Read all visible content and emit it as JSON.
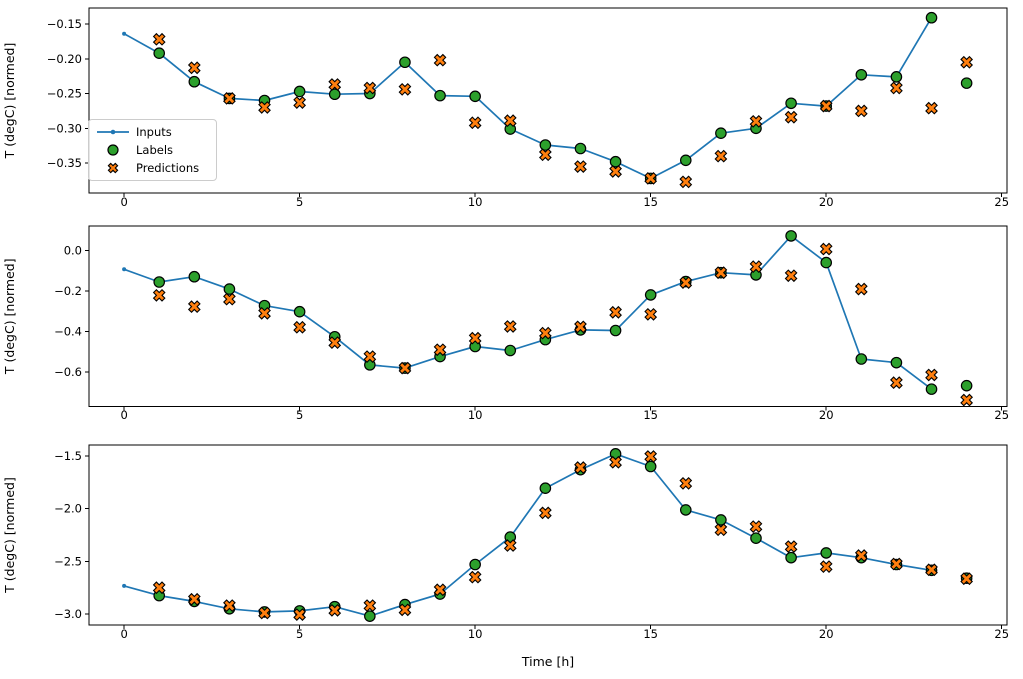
{
  "xlabel": "Time [h]",
  "colors": {
    "inputs": "#1f77b4",
    "labels": "#2ca02c",
    "predictions": "#ff7f0e",
    "marker_edge": "#000000",
    "axis": "#000000",
    "background": "#ffffff",
    "legend_border": "#cccccc"
  },
  "legend": {
    "items": [
      {
        "label": "Inputs"
      },
      {
        "label": "Labels"
      },
      {
        "label": "Predictions"
      }
    ]
  },
  "chart_data": [
    {
      "type": "line",
      "position": "top",
      "ylabel": "T (degC) [normed]",
      "grid": false,
      "legend_position": "center left",
      "xlim": [
        -1.0,
        25.15
      ],
      "ylim": [
        -0.393,
        -0.127
      ],
      "xticks": {
        "values": [
          0,
          5,
          10,
          15,
          20,
          25
        ],
        "labels": [
          "0",
          "5",
          "10",
          "15",
          "20",
          "25"
        ]
      },
      "yticks": {
        "values": [
          -0.15,
          -0.2,
          -0.25,
          -0.3,
          -0.35
        ],
        "labels": [
          "−0.15",
          "−0.20",
          "−0.25",
          "−0.30",
          "−0.35"
        ]
      },
      "series": [
        {
          "name": "Inputs",
          "style": "line-with-dots",
          "x": [
            0,
            1,
            2,
            3,
            4,
            5,
            6,
            7,
            8,
            9,
            10,
            11,
            12,
            13,
            14,
            15,
            16,
            17,
            18,
            19,
            20,
            21,
            22,
            23
          ],
          "y": [
            -0.164,
            -0.192,
            -0.233,
            -0.257,
            -0.26,
            -0.247,
            -0.251,
            -0.25,
            -0.205,
            -0.253,
            -0.254,
            -0.301,
            -0.324,
            -0.329,
            -0.348,
            -0.372,
            -0.346,
            -0.307,
            -0.3,
            -0.264,
            -0.268,
            -0.223,
            -0.226,
            -0.141
          ]
        },
        {
          "name": "Labels",
          "style": "filled-circle",
          "x": [
            1,
            2,
            3,
            4,
            5,
            6,
            7,
            8,
            9,
            10,
            11,
            12,
            13,
            14,
            15,
            16,
            17,
            18,
            19,
            20,
            21,
            22,
            23,
            24
          ],
          "y": [
            -0.192,
            -0.233,
            -0.257,
            -0.26,
            -0.247,
            -0.251,
            -0.25,
            -0.205,
            -0.253,
            -0.254,
            -0.301,
            -0.324,
            -0.329,
            -0.348,
            -0.372,
            -0.346,
            -0.307,
            -0.3,
            -0.264,
            -0.268,
            -0.223,
            -0.226,
            -0.141,
            -0.235
          ]
        },
        {
          "name": "Predictions",
          "style": "filled-x",
          "x": [
            1,
            2,
            3,
            4,
            5,
            6,
            7,
            8,
            9,
            10,
            11,
            12,
            13,
            14,
            15,
            16,
            17,
            18,
            19,
            20,
            21,
            22,
            23,
            24
          ],
          "y": [
            -0.172,
            -0.213,
            -0.257,
            -0.27,
            -0.263,
            -0.237,
            -0.242,
            -0.244,
            -0.202,
            -0.292,
            -0.289,
            -0.338,
            -0.355,
            -0.362,
            -0.372,
            -0.377,
            -0.34,
            -0.29,
            -0.284,
            -0.268,
            -0.275,
            -0.242,
            -0.271,
            -0.205
          ]
        }
      ]
    },
    {
      "type": "line",
      "position": "middle",
      "ylabel": "T (degC) [normed]",
      "grid": false,
      "xlim": [
        -1.0,
        25.15
      ],
      "ylim": [
        -0.771,
        0.122
      ],
      "xticks": {
        "values": [
          0,
          5,
          10,
          15,
          20,
          25
        ],
        "labels": [
          "0",
          "5",
          "10",
          "15",
          "20",
          "25"
        ]
      },
      "yticks": {
        "values": [
          0.0,
          -0.2,
          -0.4,
          -0.6
        ],
        "labels": [
          "0.0",
          "−0.2",
          "−0.4",
          "−0.6"
        ]
      },
      "series": [
        {
          "name": "Inputs",
          "style": "line-with-dots",
          "x": [
            0,
            1,
            2,
            3,
            4,
            5,
            6,
            7,
            8,
            9,
            10,
            11,
            12,
            13,
            14,
            15,
            16,
            17,
            18,
            19,
            20,
            21,
            22,
            23
          ],
          "y": [
            -0.092,
            -0.155,
            -0.129,
            -0.19,
            -0.272,
            -0.302,
            -0.426,
            -0.565,
            -0.581,
            -0.524,
            -0.474,
            -0.494,
            -0.44,
            -0.392,
            -0.395,
            -0.219,
            -0.153,
            -0.109,
            -0.12,
            0.073,
            -0.059,
            -0.536,
            -0.554,
            -0.685
          ]
        },
        {
          "name": "Labels",
          "style": "filled-circle",
          "x": [
            1,
            2,
            3,
            4,
            5,
            6,
            7,
            8,
            9,
            10,
            11,
            12,
            13,
            14,
            15,
            16,
            17,
            18,
            19,
            20,
            21,
            22,
            23,
            24
          ],
          "y": [
            -0.155,
            -0.129,
            -0.19,
            -0.272,
            -0.302,
            -0.426,
            -0.565,
            -0.581,
            -0.524,
            -0.474,
            -0.494,
            -0.44,
            -0.392,
            -0.395,
            -0.219,
            -0.153,
            -0.109,
            -0.12,
            0.073,
            -0.059,
            -0.536,
            -0.554,
            -0.685,
            -0.668
          ]
        },
        {
          "name": "Predictions",
          "style": "filled-x",
          "x": [
            1,
            2,
            3,
            4,
            5,
            6,
            7,
            8,
            9,
            10,
            11,
            12,
            13,
            14,
            15,
            16,
            17,
            18,
            19,
            20,
            21,
            22,
            23,
            24
          ],
          "y": [
            -0.221,
            -0.277,
            -0.24,
            -0.31,
            -0.379,
            -0.455,
            -0.524,
            -0.581,
            -0.49,
            -0.433,
            -0.375,
            -0.408,
            -0.377,
            -0.305,
            -0.315,
            -0.158,
            -0.109,
            -0.079,
            -0.124,
            0.008,
            -0.19,
            -0.653,
            -0.615,
            -0.739
          ]
        }
      ]
    },
    {
      "type": "line",
      "position": "bottom",
      "ylabel": "T (degC) [normed]",
      "grid": false,
      "xlim": [
        -1.0,
        25.15
      ],
      "ylim": [
        -3.104,
        -1.396
      ],
      "xticks": {
        "values": [
          0,
          5,
          10,
          15,
          20,
          25
        ],
        "labels": [
          "0",
          "5",
          "10",
          "15",
          "20",
          "25"
        ]
      },
      "yticks": {
        "values": [
          -1.5,
          -2.0,
          -2.5,
          -3.0
        ],
        "labels": [
          "−1.5",
          "−2.0",
          "−2.5",
          "−3.0"
        ]
      },
      "series": [
        {
          "name": "Inputs",
          "style": "line-with-dots",
          "x": [
            0,
            1,
            2,
            3,
            4,
            5,
            6,
            7,
            8,
            9,
            10,
            11,
            12,
            13,
            14,
            15,
            16,
            17,
            18,
            19,
            20,
            21,
            22,
            23
          ],
          "y": [
            -2.733,
            -2.825,
            -2.88,
            -2.95,
            -2.98,
            -2.97,
            -2.93,
            -3.02,
            -2.91,
            -2.81,
            -2.53,
            -2.27,
            -1.806,
            -1.63,
            -1.48,
            -1.6,
            -2.012,
            -2.107,
            -2.28,
            -2.465,
            -2.42,
            -2.465,
            -2.53,
            -2.585
          ]
        },
        {
          "name": "Labels",
          "style": "filled-circle",
          "x": [
            1,
            2,
            3,
            4,
            5,
            6,
            7,
            8,
            9,
            10,
            11,
            12,
            13,
            14,
            15,
            16,
            17,
            18,
            19,
            20,
            21,
            22,
            23,
            24
          ],
          "y": [
            -2.825,
            -2.88,
            -2.95,
            -2.98,
            -2.97,
            -2.93,
            -3.02,
            -2.91,
            -2.81,
            -2.53,
            -2.27,
            -1.806,
            -1.63,
            -1.48,
            -1.6,
            -2.012,
            -2.107,
            -2.28,
            -2.465,
            -2.42,
            -2.465,
            -2.53,
            -2.585,
            -2.66
          ]
        },
        {
          "name": "Predictions",
          "style": "filled-x",
          "x": [
            1,
            2,
            3,
            4,
            5,
            6,
            7,
            8,
            9,
            10,
            11,
            12,
            13,
            14,
            15,
            16,
            17,
            18,
            19,
            20,
            21,
            22,
            23,
            24
          ],
          "y": [
            -2.75,
            -2.86,
            -2.92,
            -2.99,
            -3.005,
            -2.965,
            -2.92,
            -2.96,
            -2.77,
            -2.65,
            -2.35,
            -2.04,
            -1.61,
            -1.56,
            -1.505,
            -1.76,
            -2.2,
            -2.17,
            -2.36,
            -2.55,
            -2.445,
            -2.525,
            -2.58,
            -2.665
          ]
        }
      ]
    }
  ]
}
